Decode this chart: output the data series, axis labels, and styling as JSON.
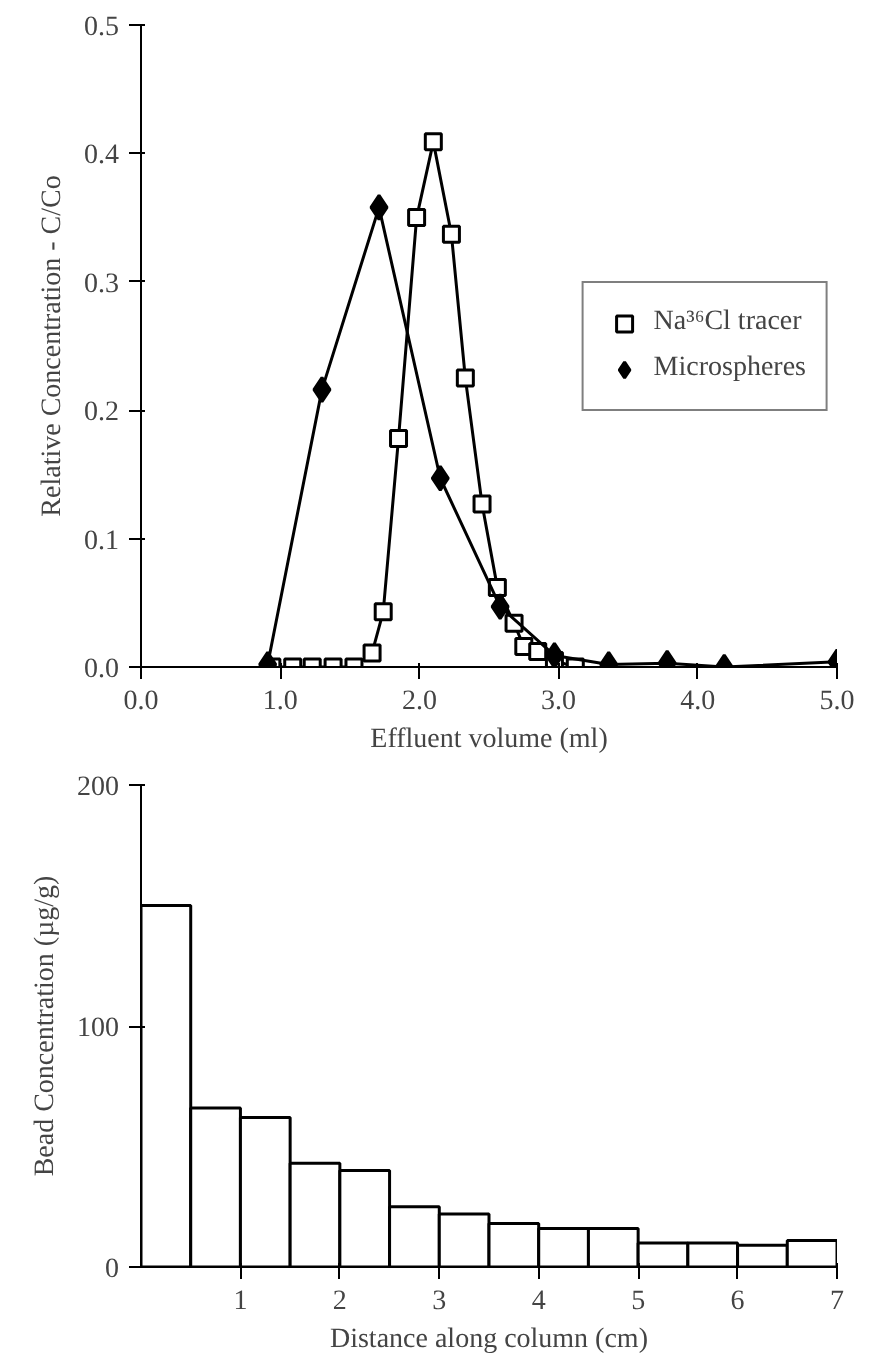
{
  "chart_data": [
    {
      "type": "line",
      "xlabel": "Effluent volume (ml)",
      "ylabel": "Relative Concentration - C/Co",
      "xlim": [
        0,
        5
      ],
      "ylim": [
        0,
        0.5
      ],
      "xticks": [
        {
          "value": 0,
          "label": "0.0"
        },
        {
          "value": 1,
          "label": "1.0"
        },
        {
          "value": 2,
          "label": "2.0"
        },
        {
          "value": 3,
          "label": "3.0"
        },
        {
          "value": 4,
          "label": "4.0"
        },
        {
          "value": 5,
          "label": "5.0"
        }
      ],
      "yticks": [
        {
          "value": 0,
          "label": "0.0"
        },
        {
          "value": 0.1,
          "label": "0.1"
        },
        {
          "value": 0.2,
          "label": "0.2"
        },
        {
          "value": 0.3,
          "label": "0.3"
        },
        {
          "value": 0.4,
          "label": "0.4"
        },
        {
          "value": 0.5,
          "label": "0.5"
        }
      ],
      "legend": "right",
      "grid": false,
      "series": [
        {
          "name": "Na³⁶Cl tracer",
          "color": "#000000",
          "marker": "square",
          "line_style": "solid",
          "x": [
            0.94,
            1.09,
            1.23,
            1.38,
            1.53,
            1.66,
            1.74,
            1.85,
            1.98,
            2.1,
            2.23,
            2.33,
            2.45,
            2.56,
            2.68,
            2.75,
            2.85,
            2.97,
            3.12
          ],
          "values": [
            0,
            0,
            0,
            0,
            0,
            0.011,
            0.043,
            0.178,
            0.35,
            0.409,
            0.337,
            0.225,
            0.127,
            0.062,
            0.034,
            0.016,
            0.012,
            0.005,
            0
          ]
        },
        {
          "name": "Microspheres",
          "color": "#000000",
          "marker": "diamond",
          "line_style": "solid",
          "x": [
            0.91,
            1.3,
            1.71,
            2.15,
            2.58,
            2.97,
            3.36,
            3.78,
            4.19,
            5.0
          ],
          "values": [
            0.002,
            0.216,
            0.358,
            0.147,
            0.047,
            0.009,
            0.002,
            0.003,
            0,
            0.004
          ]
        }
      ]
    },
    {
      "type": "histogram",
      "xlabel": "Distance along column (cm)",
      "ylabel": "Bead Concentration (µg/g)",
      "xlim": [
        0,
        7
      ],
      "ylim": [
        0,
        200
      ],
      "xticks": [
        1,
        2,
        3,
        4,
        5,
        6,
        7
      ],
      "yticks": [
        0,
        100,
        200
      ],
      "grid": false,
      "color": "#ffffff",
      "bins": [
        0,
        0.5,
        1,
        1.5,
        2,
        2.5,
        3,
        3.5,
        4,
        4.5,
        5,
        5.5,
        6,
        6.5,
        7
      ],
      "values": [
        150,
        66,
        62,
        43,
        40,
        25,
        22,
        18,
        16,
        16,
        10,
        10,
        9,
        11
      ]
    }
  ]
}
